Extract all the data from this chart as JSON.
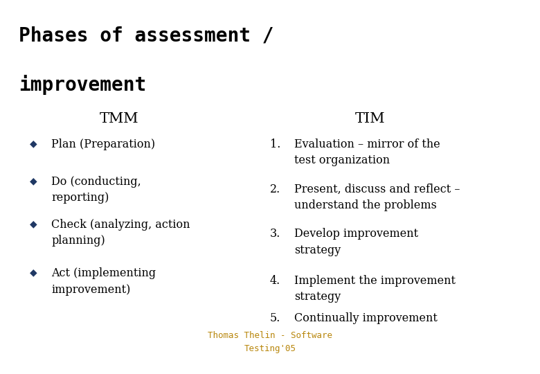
{
  "title_line1": "Phases of assessment /",
  "title_line2": "improvement",
  "title_fontsize": 20,
  "title_font": "monospace",
  "title_color": "#000000",
  "title_fontweight": "bold",
  "bg_color": "#ffffff",
  "divider_color": "#1f3864",
  "tmm_header": "TMM",
  "tim_header": "TIM",
  "header_fontsize": 15,
  "header_font": "serif",
  "bullet_color": "#1f3864",
  "bullet_char": "◆",
  "tmm_items": [
    "Plan (Preparation)",
    "Do (conducting,\nreporting)",
    "Check (analyzing, action\nplanning)",
    "Act (implementing\nimprovement)"
  ],
  "tim_items": [
    "Evaluation – mirror of the\ntest organization",
    "Present, discuss and reflect –\nunderstand the problems",
    "Develop improvement\nstrategy",
    "Implement the improvement\nstrategy",
    "Continually improvement"
  ],
  "body_fontsize": 11.5,
  "body_font": "serif",
  "footer_text": "Thomas Thelin - Software\nTesting'05",
  "footer_color": "#b8860b",
  "footer_fontsize": 9,
  "footer_font": "monospace"
}
